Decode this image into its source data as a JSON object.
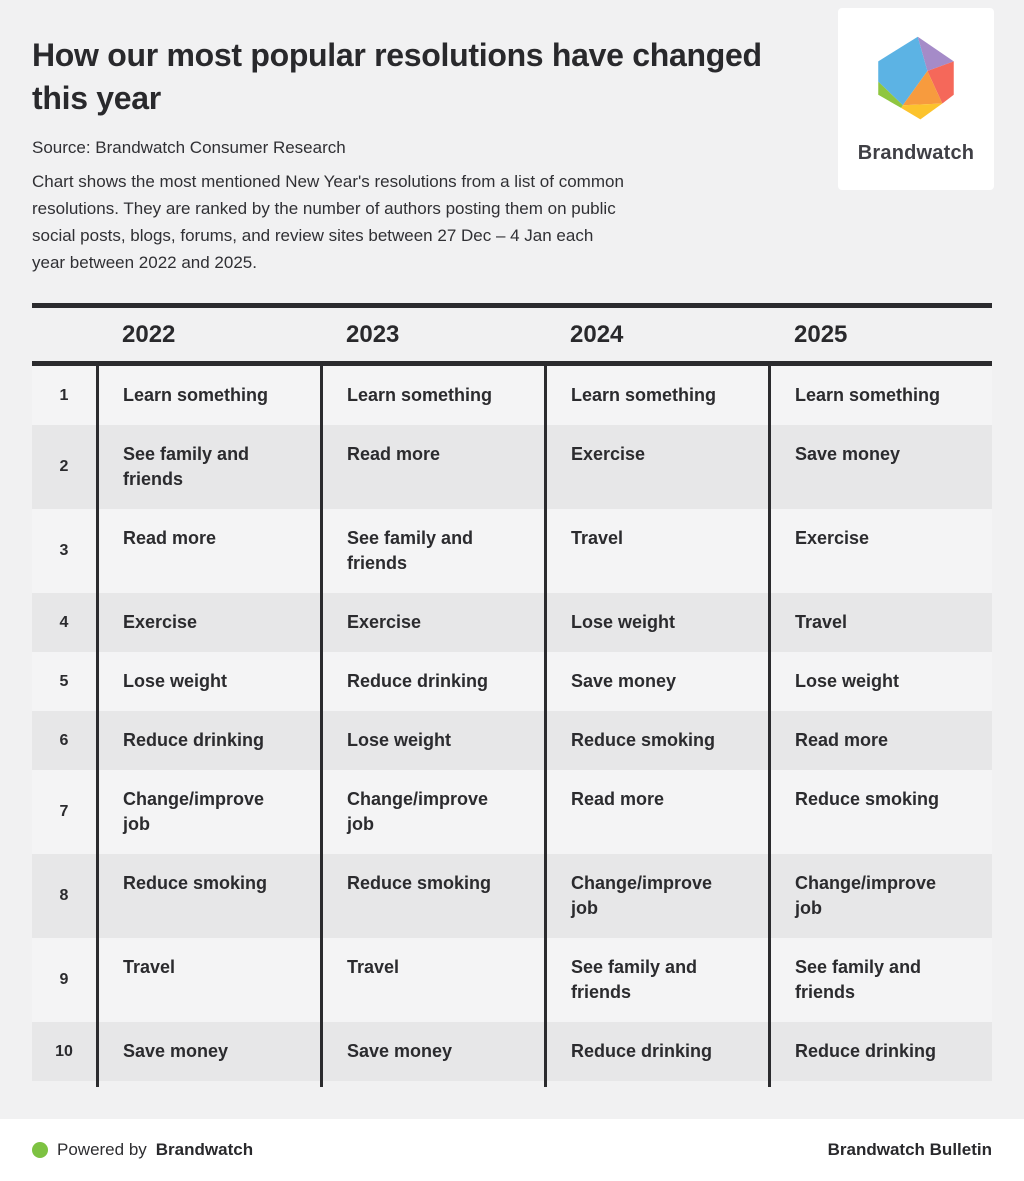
{
  "page": {
    "title_lines": [
      "How our most popular resolutions have changed",
      "this year"
    ],
    "source": "Source: Brandwatch Consumer Research",
    "description_lines": [
      "Chart shows the most mentioned New Year's resolutions from a list of common",
      "resolutions. They are ranked by the number of authors posting them on public",
      "social posts, blogs, forums, and review sites between 27 Dec – 4 Jan each",
      "year between 2022 and 2025."
    ]
  },
  "logo": {
    "wordmark": "Brandwatch",
    "colors": {
      "blue": "#5cb3e4",
      "purple": "#a58bc8",
      "red": "#f5685a",
      "orange": "#f79b3e",
      "yellow": "#fcc32d",
      "green": "#8fc640"
    }
  },
  "chart_data": {
    "type": "table",
    "title": "How our most popular resolutions have changed this year",
    "columns": [
      "2022",
      "2023",
      "2024",
      "2025"
    ],
    "rows": [
      {
        "rank": "1",
        "values": [
          "Learn something",
          "Learn something",
          "Learn something",
          "Learn something"
        ]
      },
      {
        "rank": "2",
        "values": [
          "See family and friends",
          "Read more",
          "Exercise",
          "Save money"
        ]
      },
      {
        "rank": "3",
        "values": [
          "Read more",
          "See family and friends",
          "Travel",
          "Exercise"
        ]
      },
      {
        "rank": "4",
        "values": [
          "Exercise",
          "Exercise",
          "Lose weight",
          "Travel"
        ]
      },
      {
        "rank": "5",
        "values": [
          "Lose weight",
          "Reduce drinking",
          "Save money",
          "Lose weight"
        ]
      },
      {
        "rank": "6",
        "values": [
          "Reduce drinking",
          "Lose weight",
          "Reduce smoking",
          "Read more"
        ]
      },
      {
        "rank": "7",
        "values": [
          "Change/improve job",
          "Change/improve job",
          "Read more",
          "Reduce smoking"
        ]
      },
      {
        "rank": "8",
        "values": [
          "Reduce smoking",
          "Reduce smoking",
          "Change/improve job",
          "Change/improve job"
        ]
      },
      {
        "rank": "9",
        "values": [
          "Travel",
          "Travel",
          "See family and friends",
          "See family and friends"
        ]
      },
      {
        "rank": "10",
        "values": [
          "Save money",
          "Save money",
          "Reduce drinking",
          "Reduce drinking"
        ]
      }
    ]
  },
  "footer": {
    "powered_by_prefix": "Powered by",
    "powered_by_brand": "Brandwatch",
    "bulletin": "Brandwatch Bulletin",
    "dot_color": "#7dc242"
  },
  "style_colors": {
    "page_bg": "#f1f1f2",
    "row_light": "#f4f4f5",
    "row_dark": "#e7e7e8",
    "line_ink": "#2b2b2e"
  }
}
